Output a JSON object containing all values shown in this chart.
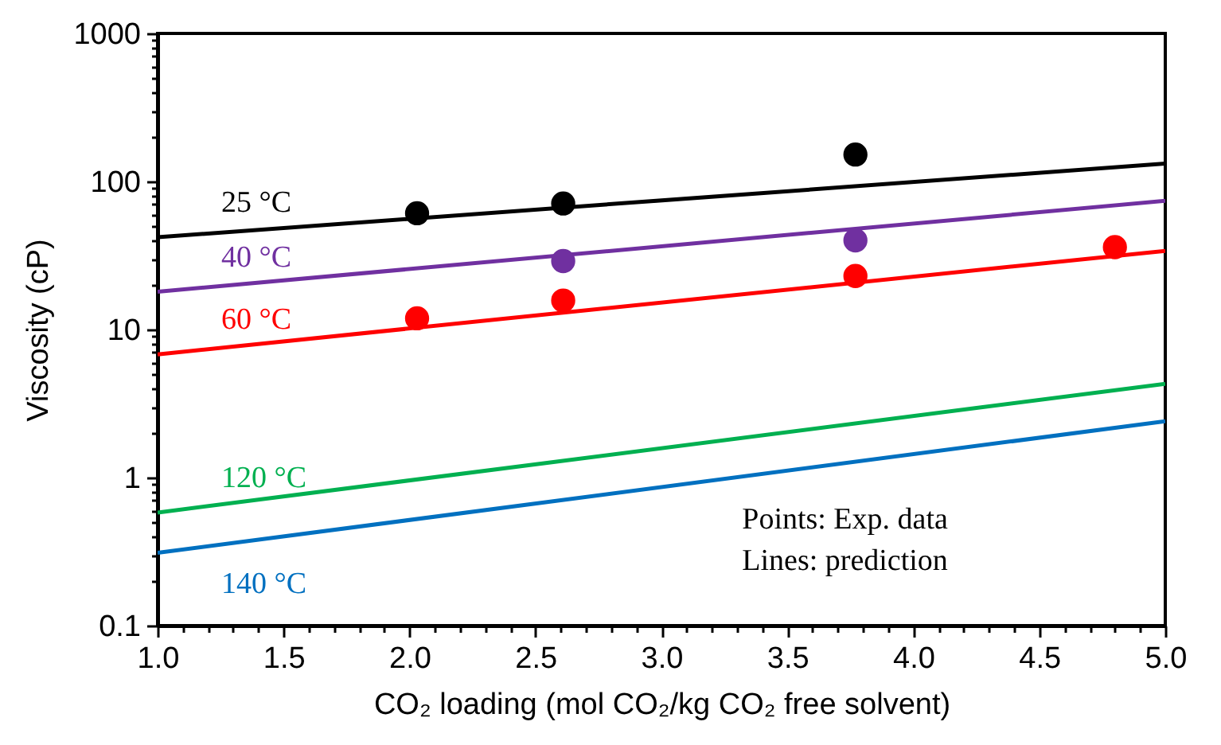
{
  "chart_data": {
    "type": "line",
    "xlabel": "CO₂ loading (mol CO₂/kg CO₂ free solvent)",
    "ylabel": "Viscosity (cP)",
    "log": "y",
    "grid": false,
    "xlim": [
      1.0,
      5.0
    ],
    "ylim": [
      0.1,
      1000
    ],
    "xticks": [
      {
        "value": 1,
        "label": "1.0"
      },
      {
        "value": 1.1,
        "label": null
      },
      {
        "value": 1.2,
        "label": null
      },
      {
        "value": 1.3,
        "label": null
      },
      {
        "value": 1.4,
        "label": null
      },
      {
        "value": 1.5,
        "label": "1.5"
      },
      {
        "value": 1.6,
        "label": null
      },
      {
        "value": 1.7,
        "label": null
      },
      {
        "value": 1.8,
        "label": null
      },
      {
        "value": 1.9,
        "label": null
      },
      {
        "value": 2,
        "label": "2.0"
      },
      {
        "value": 2.1,
        "label": null
      },
      {
        "value": 2.2,
        "label": null
      },
      {
        "value": 2.3,
        "label": null
      },
      {
        "value": 2.4,
        "label": null
      },
      {
        "value": 2.5,
        "label": "2.5"
      },
      {
        "value": 2.6,
        "label": null
      },
      {
        "value": 2.7,
        "label": null
      },
      {
        "value": 2.8,
        "label": null
      },
      {
        "value": 2.9,
        "label": null
      },
      {
        "value": 3,
        "label": "3.0"
      },
      {
        "value": 3.1,
        "label": null
      },
      {
        "value": 3.2,
        "label": null
      },
      {
        "value": 3.3,
        "label": null
      },
      {
        "value": 3.4,
        "label": null
      },
      {
        "value": 3.5,
        "label": "3.5"
      },
      {
        "value": 3.6,
        "label": null
      },
      {
        "value": 3.7,
        "label": null
      },
      {
        "value": 3.8,
        "label": null
      },
      {
        "value": 3.9,
        "label": null
      },
      {
        "value": 4,
        "label": "4.0"
      },
      {
        "value": 4.1,
        "label": null
      },
      {
        "value": 4.2,
        "label": null
      },
      {
        "value": 4.3,
        "label": null
      },
      {
        "value": 4.4,
        "label": null
      },
      {
        "value": 4.5,
        "label": "4.5"
      },
      {
        "value": 4.6,
        "label": null
      },
      {
        "value": 4.7,
        "label": null
      },
      {
        "value": 4.8,
        "label": null
      },
      {
        "value": 4.9,
        "label": null
      },
      {
        "value": 5,
        "label": "5.0"
      }
    ],
    "yticks": [
      0.1,
      {
        "value": 0.2,
        "label": null
      },
      {
        "value": 0.3,
        "label": null
      },
      {
        "value": 0.4,
        "label": null
      },
      {
        "value": 0.5,
        "label": null
      },
      {
        "value": 0.6,
        "label": null
      },
      {
        "value": 0.7,
        "label": null
      },
      {
        "value": 0.8,
        "label": null
      },
      {
        "value": 0.9,
        "label": null
      },
      1,
      {
        "value": 2,
        "label": null
      },
      {
        "value": 3,
        "label": null
      },
      {
        "value": 4,
        "label": null
      },
      {
        "value": 5,
        "label": null
      },
      {
        "value": 6,
        "label": null
      },
      {
        "value": 7,
        "label": null
      },
      {
        "value": 8,
        "label": null
      },
      {
        "value": 9,
        "label": null
      },
      10,
      {
        "value": 20,
        "label": null
      },
      {
        "value": 30,
        "label": null
      },
      {
        "value": 40,
        "label": null
      },
      {
        "value": 50,
        "label": null
      },
      {
        "value": 60,
        "label": null
      },
      {
        "value": 70,
        "label": null
      },
      {
        "value": 80,
        "label": null
      },
      {
        "value": 90,
        "label": null
      },
      100,
      {
        "value": 200,
        "label": null
      },
      {
        "value": 300,
        "label": null
      },
      {
        "value": 400,
        "label": null
      },
      {
        "value": 500,
        "label": null
      },
      {
        "value": 600,
        "label": null
      },
      {
        "value": 700,
        "label": null
      },
      {
        "value": 800,
        "label": null
      },
      {
        "value": 900,
        "label": null
      },
      1000
    ],
    "series": [
      {
        "name": "25 °C",
        "color": "#000000",
        "x": [
          1,
          5
        ],
        "values": [
          42,
          132
        ],
        "marker": "none",
        "line_style": "solid"
      },
      {
        "name": "40 °C",
        "color": "#7030a0",
        "x": [
          1,
          5
        ],
        "values": [
          18,
          74
        ],
        "marker": "none",
        "line_style": "solid"
      },
      {
        "name": "60 °C",
        "color": "#ff0000",
        "x": [
          1,
          5
        ],
        "values": [
          6.8,
          34
        ],
        "marker": "none",
        "line_style": "solid"
      },
      {
        "name": "120 °C",
        "color": "#00b050",
        "x": [
          1,
          5
        ],
        "values": [
          0.58,
          4.3
        ],
        "marker": "none",
        "line_style": "solid"
      },
      {
        "name": "140 °C",
        "color": "#0070c0",
        "x": [
          1,
          5
        ],
        "values": [
          0.31,
          2.4
        ],
        "marker": "none",
        "line_style": "solid"
      },
      {
        "type": "scatter",
        "color": "#000000",
        "x": [
          2.03,
          2.61,
          3.77
        ],
        "values": [
          61,
          71,
          152
        ],
        "marker": "circle"
      },
      {
        "type": "scatter",
        "color": "#7030a0",
        "x": [
          2.61,
          3.77
        ],
        "values": [
          29,
          40
        ],
        "marker": "circle"
      },
      {
        "type": "scatter",
        "color": "#ff0000",
        "x": [
          2.03,
          2.61,
          3.77,
          4.8
        ],
        "values": [
          11.9,
          15.7,
          23,
          36
        ],
        "marker": "circle"
      }
    ],
    "annotations": [
      "Points: Exp. data",
      "Lines: prediction"
    ]
  }
}
